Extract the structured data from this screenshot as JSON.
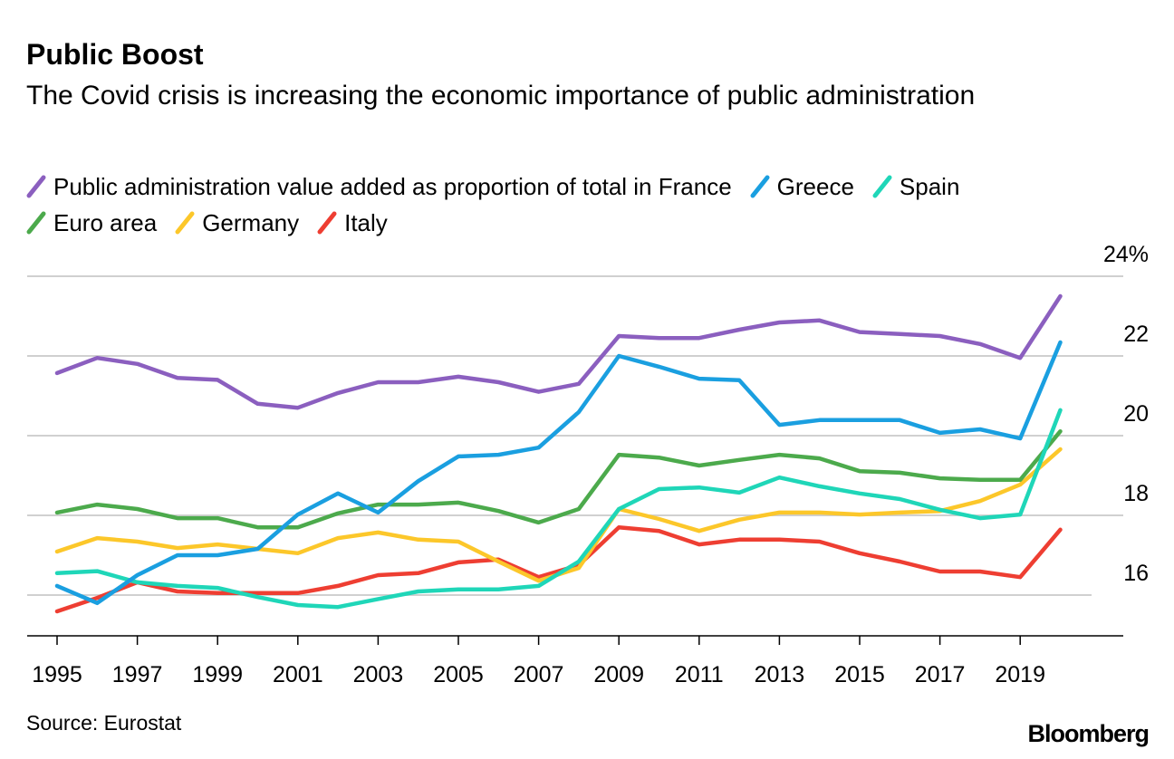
{
  "chart_data": {
    "type": "line",
    "title": "Public Boost",
    "subtitle": "The Covid crisis is increasing the economic importance of public administration",
    "x": [
      1995,
      1996,
      1997,
      1998,
      1999,
      2000,
      2001,
      2002,
      2003,
      2004,
      2005,
      2006,
      2007,
      2008,
      2009,
      2010,
      2011,
      2012,
      2013,
      2014,
      2015,
      2016,
      2017,
      2018,
      2019,
      2020
    ],
    "x_tick_labels": [
      "1995",
      "1997",
      "1999",
      "2001",
      "2003",
      "2005",
      "2007",
      "2009",
      "2011",
      "2013",
      "2015",
      "2017",
      "2019"
    ],
    "y_tick_labels": [
      "24%",
      "22",
      "20",
      "18",
      "16"
    ],
    "y_ticks": [
      24,
      22,
      20,
      18,
      16
    ],
    "ylim": [
      15,
      24
    ],
    "xlim": [
      1995,
      2020
    ],
    "grid": true,
    "legend_position": "top",
    "series": [
      {
        "name": "Public administration value added as proportion of total in France",
        "color": "#8b5fbf",
        "values": [
          21.57,
          21.95,
          21.8,
          21.45,
          21.4,
          20.8,
          20.7,
          21.07,
          21.34,
          21.34,
          21.48,
          21.34,
          21.1,
          21.3,
          22.5,
          22.45,
          22.45,
          22.66,
          22.84,
          22.89,
          22.6,
          22.55,
          22.5,
          22.3,
          21.95,
          23.5
        ]
      },
      {
        "name": "Greece",
        "color": "#1a9fe0",
        "values": [
          16.23,
          15.8,
          16.5,
          17.0,
          17.0,
          17.16,
          18.02,
          18.55,
          18.07,
          18.86,
          19.48,
          19.52,
          19.7,
          20.59,
          22.0,
          21.73,
          21.43,
          21.39,
          20.27,
          20.39,
          20.39,
          20.39,
          20.07,
          20.16,
          19.93,
          22.34
        ]
      },
      {
        "name": "Spain",
        "color": "#1fd6b8",
        "values": [
          16.55,
          16.6,
          16.32,
          16.23,
          16.18,
          15.95,
          15.75,
          15.7,
          15.9,
          16.09,
          16.14,
          16.14,
          16.23,
          16.84,
          18.16,
          18.66,
          18.7,
          18.57,
          18.95,
          18.73,
          18.55,
          18.41,
          18.14,
          17.93,
          18.02,
          20.64
        ]
      },
      {
        "name": "Euro area",
        "color": "#4caa4c",
        "values": [
          18.07,
          18.27,
          18.16,
          17.93,
          17.93,
          17.7,
          17.7,
          18.05,
          18.27,
          18.27,
          18.32,
          18.11,
          17.82,
          18.16,
          19.52,
          19.45,
          19.25,
          19.39,
          19.52,
          19.43,
          19.11,
          19.07,
          18.93,
          18.89,
          18.89,
          20.11
        ]
      },
      {
        "name": "Germany",
        "color": "#fcc72a",
        "values": [
          17.09,
          17.43,
          17.34,
          17.18,
          17.27,
          17.16,
          17.05,
          17.43,
          17.57,
          17.39,
          17.34,
          16.84,
          16.36,
          16.68,
          18.16,
          17.91,
          17.61,
          17.89,
          18.07,
          18.07,
          18.02,
          18.07,
          18.11,
          18.36,
          18.77,
          19.66
        ]
      },
      {
        "name": "Italy",
        "color": "#ee3e32",
        "values": [
          15.59,
          15.93,
          16.32,
          16.09,
          16.05,
          16.05,
          16.05,
          16.23,
          16.5,
          16.55,
          16.82,
          16.89,
          16.45,
          16.75,
          17.7,
          17.61,
          17.27,
          17.39,
          17.39,
          17.34,
          17.05,
          16.84,
          16.59,
          16.59,
          16.45,
          17.64
        ]
      }
    ],
    "source": "Source: Eurostat",
    "logo": "Bloomberg"
  }
}
